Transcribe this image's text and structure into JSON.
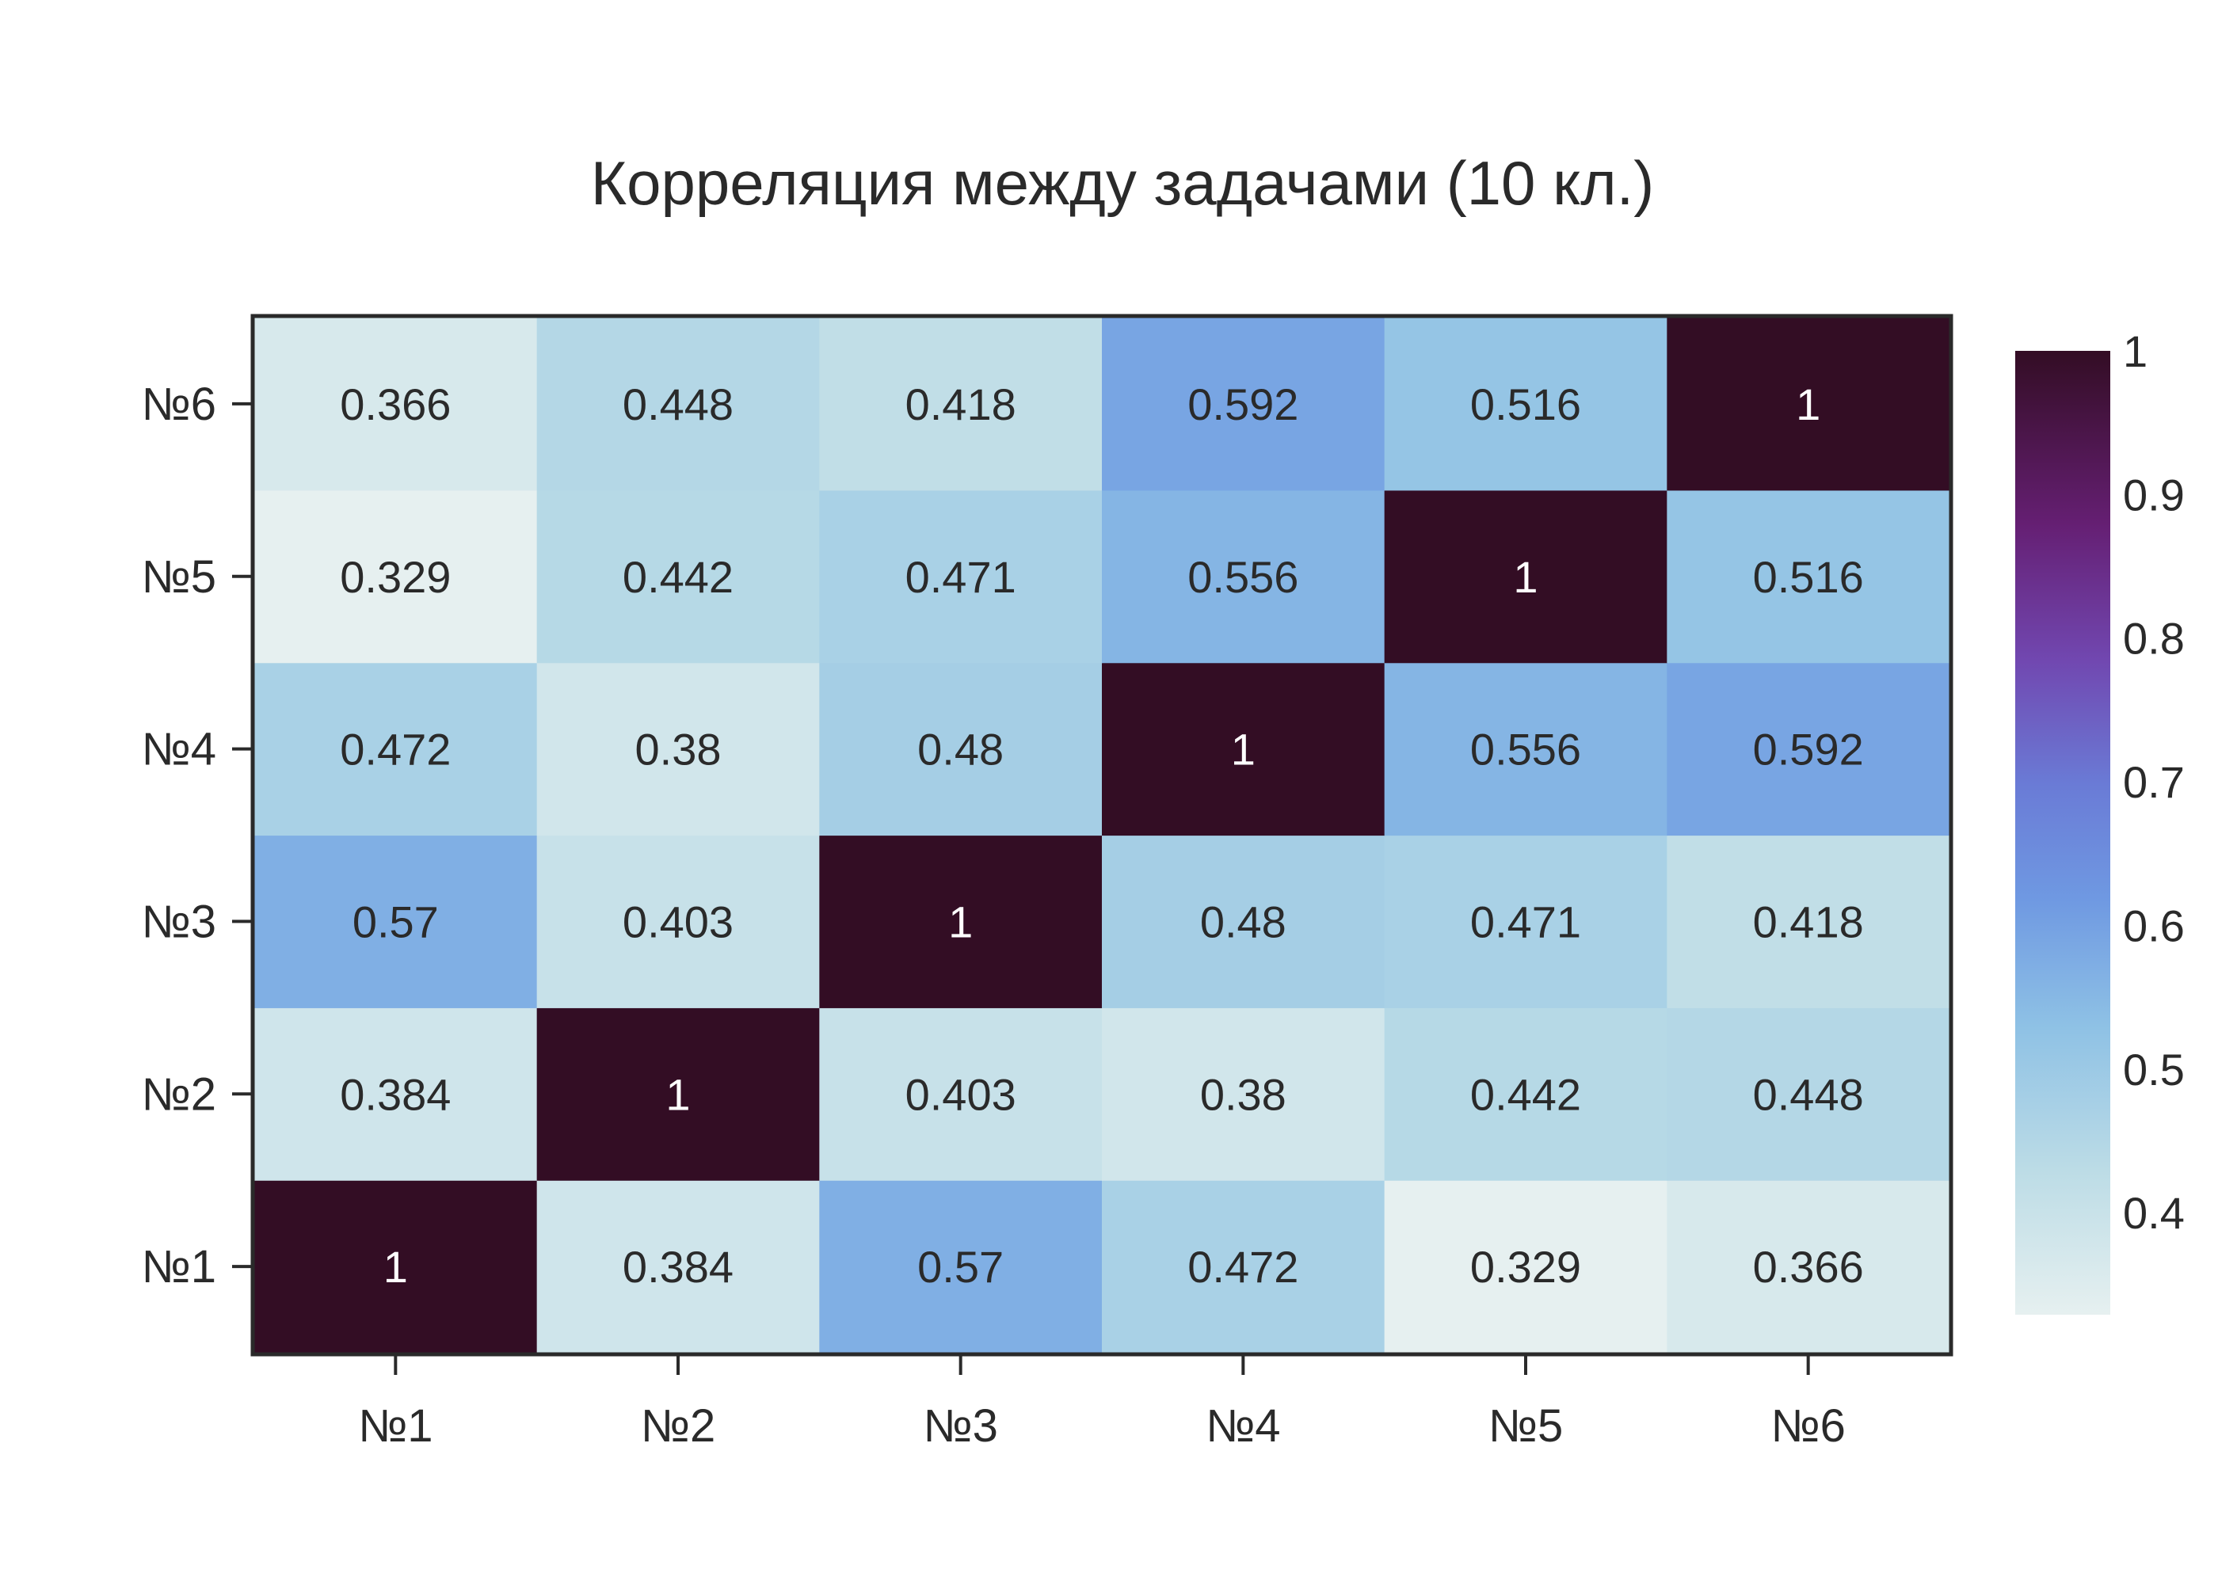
{
  "chart_data": {
    "type": "heatmap",
    "title": "Корреляция между задачами (10 кл.)",
    "xlabel": "",
    "ylabel": "",
    "x_categories": [
      "№1",
      "№2",
      "№3",
      "№4",
      "№5",
      "№6"
    ],
    "y_categories": [
      "№1",
      "№2",
      "№3",
      "№4",
      "№5",
      "№6"
    ],
    "values": [
      [
        1,
        0.384,
        0.57,
        0.472,
        0.329,
        0.366
      ],
      [
        0.384,
        1,
        0.403,
        0.38,
        0.442,
        0.448
      ],
      [
        0.57,
        0.403,
        1,
        0.48,
        0.471,
        0.418
      ],
      [
        0.472,
        0.38,
        0.48,
        1,
        0.556,
        0.592
      ],
      [
        0.329,
        0.442,
        0.471,
        0.556,
        1,
        0.516
      ],
      [
        0.366,
        0.448,
        0.418,
        0.592,
        0.516,
        1
      ]
    ],
    "cell_labels": [
      [
        "1",
        "0.384",
        "0.57",
        "0.472",
        "0.329",
        "0.366"
      ],
      [
        "0.384",
        "1",
        "0.403",
        "0.38",
        "0.442",
        "0.448"
      ],
      [
        "0.57",
        "0.403",
        "1",
        "0.48",
        "0.471",
        "0.418"
      ],
      [
        "0.472",
        "0.38",
        "0.48",
        "1",
        "0.556",
        "0.592"
      ],
      [
        "0.329",
        "0.442",
        "0.471",
        "0.556",
        "1",
        "0.516"
      ],
      [
        "0.366",
        "0.448",
        "0.418",
        "0.592",
        "0.516",
        "1"
      ]
    ],
    "colorbar": {
      "range": [
        0.329,
        1
      ],
      "tick_values": [
        0.4,
        0.5,
        0.6,
        0.7,
        0.8,
        0.9,
        1
      ],
      "tick_labels": [
        "0.4",
        "0.5",
        "0.6",
        "0.7",
        "0.8",
        "0.9",
        "1"
      ],
      "colorscale": [
        [
          0.0,
          "#e6f0f0"
        ],
        [
          0.15,
          "#bcdce6"
        ],
        [
          0.3,
          "#8ec1e5"
        ],
        [
          0.43,
          "#6f99e2"
        ],
        [
          0.55,
          "#6a7bd6"
        ],
        [
          0.68,
          "#7147b0"
        ],
        [
          0.82,
          "#651f73"
        ],
        [
          1.0,
          "#330d24"
        ]
      ]
    },
    "grid": false,
    "legend": "none"
  }
}
